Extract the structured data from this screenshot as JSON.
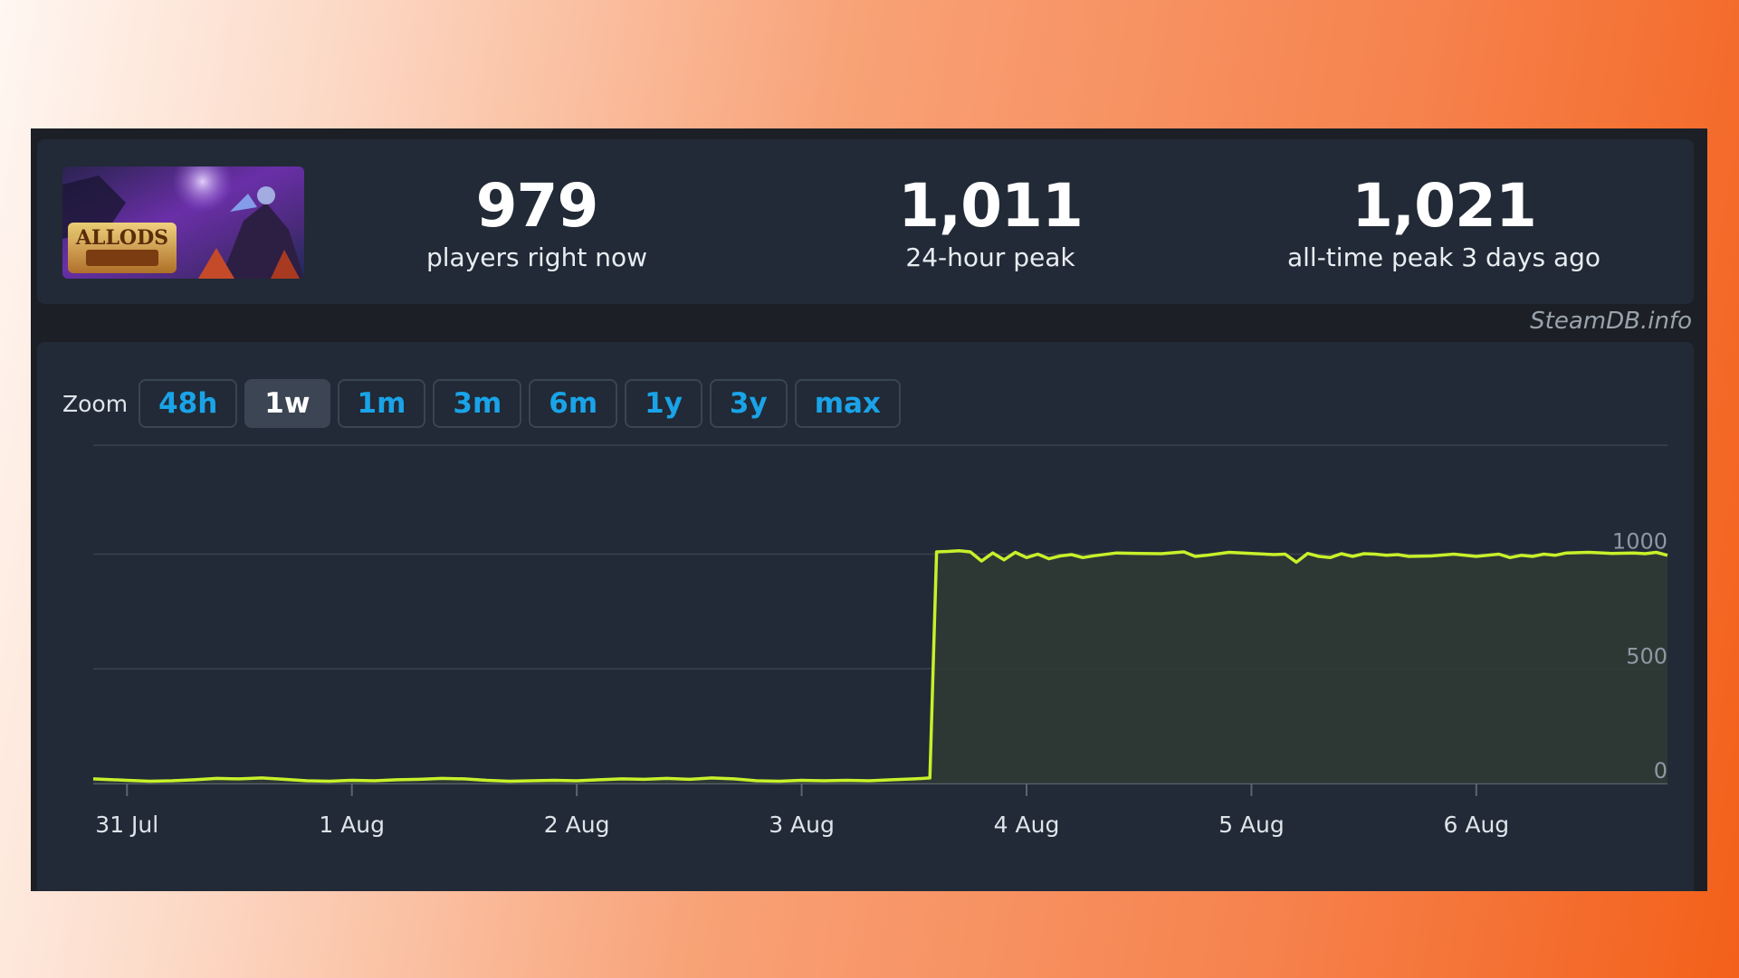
{
  "stats": {
    "current": {
      "value": "979",
      "label": "players right now"
    },
    "peak_24h": {
      "value": "1,011",
      "label": "24-hour peak"
    },
    "all_time": {
      "value": "1,021",
      "label": "all-time peak 3 days ago"
    }
  },
  "credit": "SteamDB.info",
  "zoom": {
    "label": "Zoom",
    "options": [
      "48h",
      "1w",
      "1m",
      "3m",
      "6m",
      "1y",
      "3y",
      "max"
    ],
    "active": "1w"
  },
  "colors": {
    "line": "#c8f02a",
    "accent": "#1aa3e8",
    "panel": "#212a36"
  },
  "chart_data": {
    "type": "area",
    "title": "",
    "xlabel": "",
    "ylabel": "",
    "x_tick_labels": [
      "31 Jul",
      "1 Aug",
      "2 Aug",
      "3 Aug",
      "4 Aug",
      "5 Aug",
      "6 Aug"
    ],
    "y_tick_labels": [
      "0",
      "500",
      "1000"
    ],
    "y_ticks": [
      0,
      500,
      1000
    ],
    "ylim": [
      0,
      1500
    ],
    "x_range_days": [
      -0.15,
      6.85
    ],
    "grid": true,
    "legend": "none",
    "series": [
      {
        "x_days": [
          -0.15,
          0.0,
          0.1,
          0.2,
          0.3,
          0.4,
          0.5,
          0.6,
          0.7,
          0.8,
          0.9,
          1.0,
          1.1,
          1.2,
          1.3,
          1.4,
          1.5,
          1.6,
          1.7,
          1.8,
          1.9,
          2.0,
          2.1,
          2.2,
          2.3,
          2.4,
          2.5,
          2.6,
          2.7,
          2.8,
          2.9,
          3.0,
          3.1,
          3.2,
          3.3,
          3.4,
          3.5,
          3.54,
          3.57,
          3.6,
          3.65,
          3.7,
          3.75,
          3.8,
          3.85,
          3.9,
          3.95,
          4.0,
          4.05,
          4.1,
          4.15,
          4.2,
          4.25,
          4.3,
          4.4,
          4.5,
          4.6,
          4.7,
          4.75,
          4.8,
          4.9,
          5.0,
          5.1,
          5.15,
          5.2,
          5.25,
          5.3,
          5.35,
          5.4,
          5.45,
          5.5,
          5.55,
          5.6,
          5.65,
          5.7,
          5.8,
          5.9,
          6.0,
          6.1,
          6.15,
          6.2,
          6.25,
          6.3,
          6.35,
          6.4,
          6.5,
          6.6,
          6.7,
          6.75,
          6.8,
          6.85
        ],
        "values": [
          20,
          14,
          10,
          12,
          16,
          22,
          20,
          24,
          18,
          12,
          10,
          14,
          12,
          16,
          18,
          22,
          20,
          14,
          10,
          12,
          14,
          12,
          16,
          20,
          18,
          22,
          18,
          24,
          20,
          12,
          10,
          14,
          12,
          14,
          12,
          16,
          20,
          22,
          24,
          1010,
          1012,
          1015,
          1010,
          970,
          1005,
          975,
          1008,
          985,
          1000,
          980,
          992,
          998,
          985,
          993,
          1005,
          1003,
          1002,
          1010,
          990,
          995,
          1008,
          1003,
          998,
          1000,
          965,
          1003,
          990,
          985,
          1002,
          990,
          1002,
          1000,
          995,
          998,
          990,
          992,
          1000,
          990,
          1000,
          985,
          995,
          990,
          1000,
          995,
          1005,
          1008,
          1003,
          1005,
          1002,
          1008,
          995
        ]
      }
    ]
  }
}
